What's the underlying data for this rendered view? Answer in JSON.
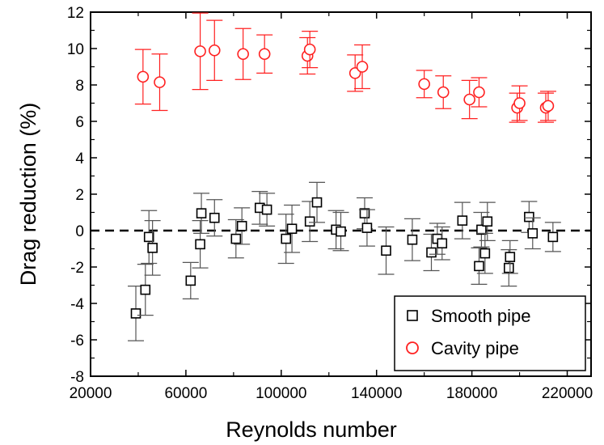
{
  "chart_data": {
    "type": "scatter",
    "xlabel": "Reynolds number",
    "ylabel": "Drag reduction  (%)",
    "xlim": [
      20000,
      230000
    ],
    "ylim": [
      -8,
      12
    ],
    "xticks": [
      20000,
      60000,
      100000,
      140000,
      180000,
      220000
    ],
    "yticks": [
      -8,
      -6,
      -4,
      -2,
      0,
      2,
      4,
      6,
      8,
      10,
      12
    ],
    "reference_line": {
      "y": 0,
      "style": "dashed"
    },
    "legend_position": "bottom-right",
    "series": [
      {
        "name": "Smooth pipe",
        "marker": "square",
        "color": "#000000",
        "points": [
          {
            "x": 39000,
            "y": -4.55,
            "err": 1.5
          },
          {
            "x": 43000,
            "y": -3.25,
            "err": 1.4
          },
          {
            "x": 44500,
            "y": -0.35,
            "err": 1.45
          },
          {
            "x": 46000,
            "y": -0.95,
            "err": 1.5
          },
          {
            "x": 62000,
            "y": -2.75,
            "err": 1.0
          },
          {
            "x": 66000,
            "y": -0.75,
            "err": 1.3
          },
          {
            "x": 66500,
            "y": 0.95,
            "err": 1.1
          },
          {
            "x": 72000,
            "y": 0.7,
            "err": 1.0
          },
          {
            "x": 81000,
            "y": -0.45,
            "err": 1.05
          },
          {
            "x": 83500,
            "y": 0.25,
            "err": 1.0
          },
          {
            "x": 91000,
            "y": 1.25,
            "err": 0.9
          },
          {
            "x": 94000,
            "y": 1.15,
            "err": 0.9
          },
          {
            "x": 102000,
            "y": -0.45,
            "err": 1.35
          },
          {
            "x": 104500,
            "y": 0.1,
            "err": 1.3
          },
          {
            "x": 112000,
            "y": 0.5,
            "err": 1.1
          },
          {
            "x": 115000,
            "y": 1.55,
            "err": 1.1
          },
          {
            "x": 123000,
            "y": 0.05,
            "err": 1.05
          },
          {
            "x": 125000,
            "y": -0.05,
            "err": 1.05
          },
          {
            "x": 135000,
            "y": 0.95,
            "err": 0.85
          },
          {
            "x": 136000,
            "y": 0.15,
            "err": 1.0
          },
          {
            "x": 144000,
            "y": -1.1,
            "err": 1.3
          },
          {
            "x": 155000,
            "y": -0.5,
            "err": 1.15
          },
          {
            "x": 163000,
            "y": -1.2,
            "err": 1.0
          },
          {
            "x": 165500,
            "y": -0.45,
            "err": 0.85
          },
          {
            "x": 167500,
            "y": -0.7,
            "err": 0.9
          },
          {
            "x": 176000,
            "y": 0.55,
            "err": 1.0
          },
          {
            "x": 183000,
            "y": -1.95,
            "err": 1.0
          },
          {
            "x": 184000,
            "y": 0.05,
            "err": 0.95
          },
          {
            "x": 185500,
            "y": -1.25,
            "err": 1.1
          },
          {
            "x": 186500,
            "y": 0.5,
            "err": 1.05
          },
          {
            "x": 195500,
            "y": -2.05,
            "err": 1.0
          },
          {
            "x": 196000,
            "y": -1.45,
            "err": 0.9
          },
          {
            "x": 204000,
            "y": 0.75,
            "err": 0.85
          },
          {
            "x": 205500,
            "y": -0.15,
            "err": 0.85
          },
          {
            "x": 214000,
            "y": -0.35,
            "err": 0.8
          }
        ]
      },
      {
        "name": "Cavity pipe",
        "marker": "circle",
        "color": "#ff2020",
        "points": [
          {
            "x": 42000,
            "y": 8.45,
            "err": 1.5
          },
          {
            "x": 49000,
            "y": 8.15,
            "err": 1.55
          },
          {
            "x": 66000,
            "y": 9.85,
            "err": 2.1
          },
          {
            "x": 72000,
            "y": 9.9,
            "err": 1.65
          },
          {
            "x": 84000,
            "y": 9.7,
            "err": 1.4
          },
          {
            "x": 93000,
            "y": 9.7,
            "err": 1.05
          },
          {
            "x": 111000,
            "y": 9.6,
            "err": 1.0
          },
          {
            "x": 112000,
            "y": 9.95,
            "err": 1.0
          },
          {
            "x": 131000,
            "y": 8.65,
            "err": 1.0
          },
          {
            "x": 134000,
            "y": 9.0,
            "err": 1.2
          },
          {
            "x": 160000,
            "y": 8.05,
            "err": 0.75
          },
          {
            "x": 168000,
            "y": 7.6,
            "err": 0.9
          },
          {
            "x": 179000,
            "y": 7.2,
            "err": 1.05
          },
          {
            "x": 183000,
            "y": 7.6,
            "err": 0.8
          },
          {
            "x": 199000,
            "y": 6.75,
            "err": 0.8
          },
          {
            "x": 200000,
            "y": 7.0,
            "err": 0.95
          },
          {
            "x": 211000,
            "y": 6.75,
            "err": 0.8
          },
          {
            "x": 212000,
            "y": 6.85,
            "err": 0.8
          }
        ]
      }
    ]
  }
}
